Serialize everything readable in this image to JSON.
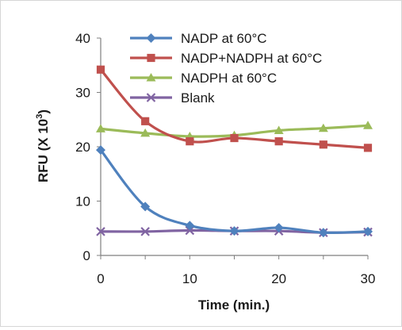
{
  "chart_data": {
    "type": "line",
    "xlabel": "Time (min.)",
    "ylabel_main": "RFU (X 10",
    "ylabel_sup": "3",
    "ylabel_end": ")",
    "xlim": [
      0,
      30
    ],
    "ylim": [
      0,
      40
    ],
    "x_ticks": [
      0,
      10,
      20,
      30
    ],
    "y_ticks": [
      0,
      10,
      20,
      30,
      40
    ],
    "legend_position": "top-right",
    "grid": false,
    "x": [
      0,
      5,
      10,
      15,
      20,
      25,
      30
    ],
    "series": [
      {
        "name": "NADP at 60°C",
        "color": "#4f81bd",
        "marker": "diamond",
        "values": [
          19.4,
          9.0,
          5.5,
          4.5,
          5.1,
          4.2,
          4.4
        ]
      },
      {
        "name": "NADP+NADPH at 60°C",
        "color": "#c0504d",
        "marker": "square",
        "values": [
          34.2,
          24.7,
          21.0,
          21.6,
          21.0,
          20.4,
          19.8
        ]
      },
      {
        "name": "NADPH at 60°C",
        "color": "#9bbb59",
        "marker": "triangle",
        "values": [
          23.3,
          22.5,
          21.9,
          22.1,
          23.0,
          23.4,
          23.9
        ]
      },
      {
        "name": "Blank",
        "color": "#8064a2",
        "marker": "x",
        "values": [
          4.4,
          4.4,
          4.6,
          4.5,
          4.5,
          4.2,
          4.3
        ]
      }
    ]
  }
}
